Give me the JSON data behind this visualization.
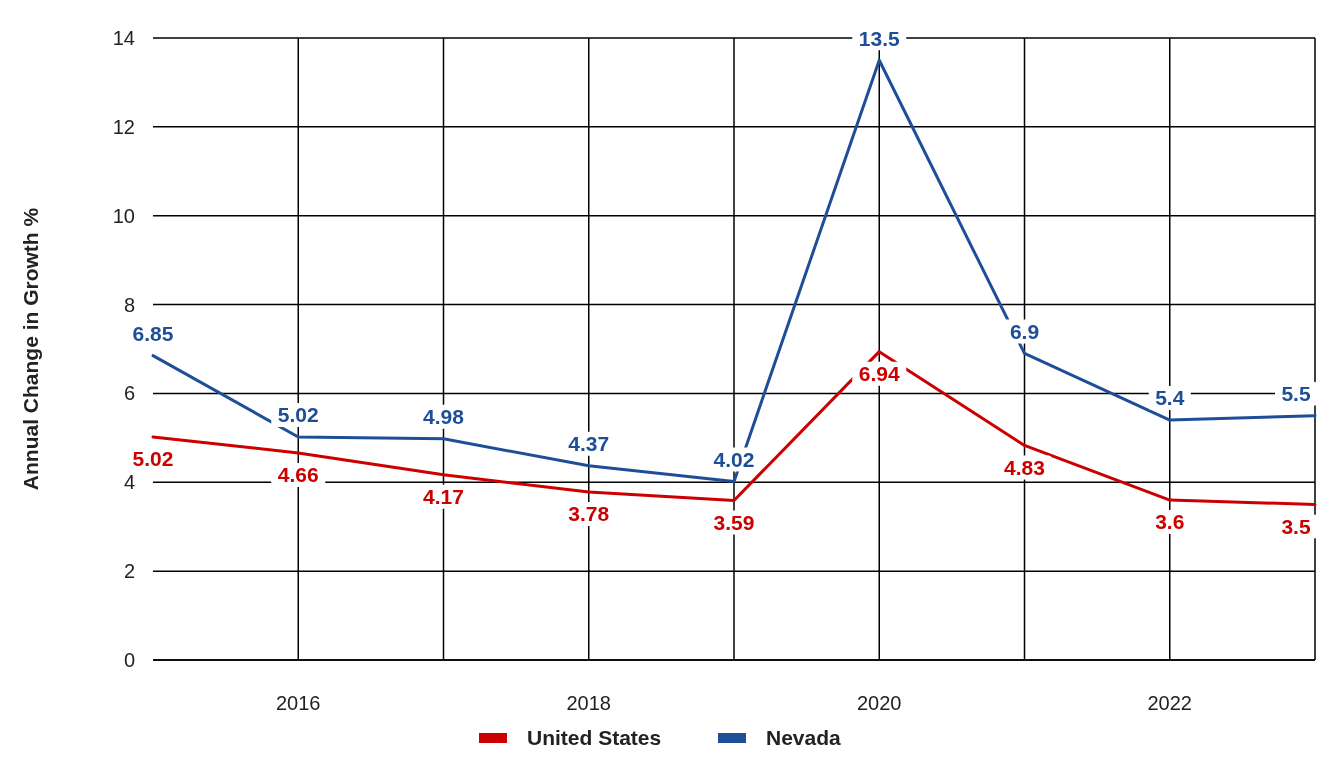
{
  "chart_data": {
    "type": "line",
    "ylabel": "Annual Change in Growth %",
    "x": [
      2015,
      2016,
      2017,
      2018,
      2019,
      2020,
      2021,
      2022,
      2023
    ],
    "series": [
      {
        "name": "United States",
        "color": "#cc0000",
        "values": [
          5.02,
          4.66,
          4.17,
          3.78,
          3.59,
          6.94,
          4.83,
          3.6,
          3.5
        ]
      },
      {
        "name": "Nevada",
        "color": "#1f4e99",
        "values": [
          6.85,
          5.02,
          4.98,
          4.37,
          4.02,
          13.5,
          6.9,
          5.4,
          5.5
        ]
      }
    ],
    "xlim": [
      2015,
      2023
    ],
    "xticks": [
      2016,
      {
        "value": 2017,
        "label": null
      },
      2018,
      {
        "value": 2019,
        "label": null
      },
      2020,
      {
        "value": 2021,
        "label": null
      },
      2022,
      {
        "value": 2023,
        "label": null
      }
    ],
    "ylim": [
      0,
      14
    ],
    "yticks": [
      0,
      2,
      4,
      6,
      8,
      10,
      12,
      14
    ],
    "grid": true,
    "legend": "bottom",
    "data_labels": true,
    "marker": "none",
    "line_style": "solid"
  }
}
